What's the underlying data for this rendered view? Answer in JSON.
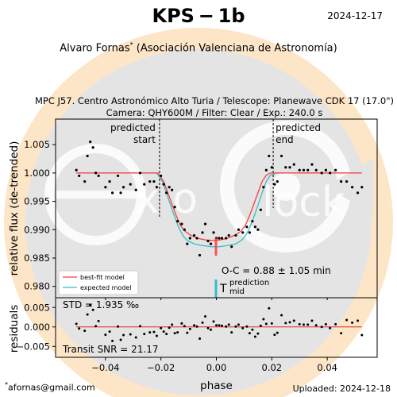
{
  "header": {
    "title": "KPS − 1b",
    "date": "2024-12-17",
    "author_prefix": "Alvaro Fornas",
    "author_mark": "*",
    "author_suffix": " (Asociación Valenciana de Astronomía)",
    "observation_line1": "MPC J57. Centro Astronómico Alto Turia / Telescope: Planewave CDK 17 (17.0\")",
    "observation_line2": "Camera: QHY600M / Filter: Clear / Exp.: 240.0 s"
  },
  "footer": {
    "email_mark": "*",
    "email": "afornas@gmail.com",
    "uploaded": "Uploaded: 2024-12-18"
  },
  "colors": {
    "bestfit": "#ff3b3b",
    "expected": "#2ebfc8",
    "residual_line": "#dd2222",
    "bg_cream": "#fde6c8",
    "bg_gray": "#e2e2e2"
  },
  "chart_data": [
    {
      "type": "scatter",
      "panel": "main",
      "ylabel": "relative flux (de-trended)",
      "xlim": [
        -0.058,
        0.058
      ],
      "ylim": [
        0.978,
        1.0095
      ],
      "yticks": [
        "0.980",
        "0.985",
        "0.990",
        "0.995",
        "1.000",
        "1.005"
      ],
      "ytick_values": [
        0.98,
        0.985,
        0.99,
        0.995,
        1.0,
        1.005
      ],
      "predicted_start": {
        "x": -0.0205,
        "label_line1": "predicted",
        "label_line2": "start"
      },
      "predicted_end": {
        "x": 0.0205,
        "label_line1": "predicted",
        "label_line2": "end"
      },
      "series": [
        {
          "name": "best-fit model",
          "kind": "model",
          "x": [
            -0.0505,
            -0.021,
            -0.019,
            -0.0175,
            -0.016,
            -0.0145,
            -0.013,
            -0.0115,
            -0.0095,
            -0.007,
            -0.004,
            -0.001,
            0.0015,
            0.004,
            0.007,
            0.009,
            0.0105,
            0.012,
            0.0135,
            0.015,
            0.0165,
            0.018,
            0.0195,
            0.021,
            0.0525
          ],
          "y": [
            1.0,
            1.0,
            0.9985,
            0.9965,
            0.9945,
            0.9925,
            0.9908,
            0.9898,
            0.9891,
            0.9885,
            0.9882,
            0.9881,
            0.9882,
            0.9885,
            0.9891,
            0.9898,
            0.9908,
            0.9925,
            0.9945,
            0.9965,
            0.9985,
            0.9996,
            1.0,
            1.0,
            1.0
          ]
        },
        {
          "name": "expected model",
          "kind": "model",
          "x": [
            -0.0505,
            -0.0215,
            -0.0195,
            -0.018,
            -0.0165,
            -0.015,
            -0.0135,
            -0.012,
            -0.0105,
            -0.008,
            -0.005,
            -0.002,
            0.001,
            0.004,
            0.007,
            0.009,
            0.0105,
            0.012,
            0.0135,
            0.015,
            0.0165,
            0.018,
            0.0195,
            0.0215,
            0.0525
          ],
          "y": [
            1.0,
            1.0,
            0.9985,
            0.9965,
            0.9943,
            0.9922,
            0.9903,
            0.9889,
            0.9881,
            0.9875,
            0.9872,
            0.987,
            0.987,
            0.9872,
            0.9875,
            0.9881,
            0.9889,
            0.9903,
            0.9922,
            0.9943,
            0.9965,
            0.9985,
            0.9996,
            1.0,
            1.0
          ]
        },
        {
          "name": "data",
          "kind": "points",
          "x": [
            -0.0505,
            -0.0495,
            -0.0475,
            -0.0465,
            -0.0455,
            -0.0445,
            -0.0435,
            -0.0425,
            -0.04,
            -0.0385,
            -0.0375,
            -0.0355,
            -0.0345,
            -0.0335,
            -0.031,
            -0.029,
            -0.0275,
            -0.026,
            -0.024,
            -0.0225,
            -0.0215,
            -0.02,
            -0.019,
            -0.018,
            -0.017,
            -0.016,
            -0.015,
            -0.014,
            -0.0125,
            -0.0115,
            -0.0105,
            -0.0095,
            -0.008,
            -0.007,
            -0.006,
            -0.005,
            -0.004,
            -0.003,
            -0.002,
            -0.001,
            0.0,
            0.001,
            0.002,
            0.0035,
            0.0045,
            0.0055,
            0.007,
            0.008,
            0.0095,
            0.011,
            0.012,
            0.013,
            0.014,
            0.015,
            0.016,
            0.017,
            0.018,
            0.019,
            0.02,
            0.021,
            0.022,
            0.0235,
            0.025,
            0.0265,
            0.028,
            0.03,
            0.0315,
            0.033,
            0.0345,
            0.036,
            0.038,
            0.0395,
            0.041,
            0.043,
            0.045,
            0.047,
            0.049,
            0.051,
            0.0525
          ],
          "y": [
            1.0005,
            0.9995,
            0.9985,
            1.003,
            1.0055,
            1.0045,
            1.0,
            0.9995,
            0.9975,
            0.9985,
            0.9965,
            0.9995,
            0.9965,
            0.9975,
            0.998,
            0.997,
            1.0,
            0.998,
            0.9985,
            0.9985,
            0.9975,
            0.9995,
            0.998,
            0.9965,
            0.9975,
            0.997,
            0.994,
            0.9915,
            0.991,
            0.99,
            0.9875,
            0.9885,
            0.989,
            0.9885,
            0.9855,
            0.9895,
            0.991,
            0.988,
            0.9875,
            0.9895,
            0.9885,
            0.9885,
            0.9885,
            0.9885,
            0.989,
            0.987,
            0.989,
            0.99,
            0.9895,
            0.9905,
            0.9895,
            0.9915,
            0.9905,
            0.99,
            0.9935,
            0.9975,
            1.0005,
            1.003,
            1.001,
            0.998,
            0.9985,
            1.003,
            1.001,
            1.001,
            1.0015,
            1.0005,
            1.0005,
            1.0005,
            1.0015,
            1.0005,
            1.0,
            1.0005,
            1.0,
            1.0005,
            0.9985,
            0.9985,
            0.9975,
            0.9965,
            0.9975
          ]
        }
      ],
      "legend": {
        "position": "lower-left",
        "entries": [
          "best-fit model",
          "expected model"
        ]
      },
      "annotations": {
        "oc_text": "O-C = 0.88 ± 1.05 min",
        "tmid_main": "T",
        "tmid_sup": "prediction",
        "tmid_sub": "mid"
      }
    },
    {
      "type": "scatter",
      "panel": "residuals",
      "ylabel": "residuals",
      "xlabel": "phase",
      "xlim": [
        -0.058,
        0.058
      ],
      "ylim": [
        -0.0078,
        0.0075
      ],
      "xticks": [
        "−0.04",
        "−0.02",
        "0.00",
        "0.02",
        "0.04"
      ],
      "xtick_values": [
        -0.04,
        -0.02,
        0.0,
        0.02,
        0.04
      ],
      "yticks": [
        "0.005",
        "0.000",
        "−0.005"
      ],
      "ytick_values": [
        0.005,
        0.0,
        -0.005
      ],
      "std_text": "STD = 1.935 ‰",
      "snr_text": "Transit SNR = 21.17",
      "series": [
        {
          "name": "residuals",
          "kind": "points",
          "x": [
            -0.0505,
            -0.0495,
            -0.0475,
            -0.0465,
            -0.0455,
            -0.0445,
            -0.0435,
            -0.0425,
            -0.04,
            -0.0385,
            -0.0375,
            -0.0355,
            -0.0345,
            -0.0335,
            -0.031,
            -0.029,
            -0.0275,
            -0.026,
            -0.024,
            -0.0225,
            -0.0215,
            -0.02,
            -0.019,
            -0.018,
            -0.017,
            -0.016,
            -0.015,
            -0.014,
            -0.0125,
            -0.0115,
            -0.0105,
            -0.0095,
            -0.008,
            -0.007,
            -0.006,
            -0.005,
            -0.004,
            -0.003,
            -0.002,
            -0.001,
            0.0,
            0.001,
            0.002,
            0.0035,
            0.0045,
            0.0055,
            0.007,
            0.008,
            0.0095,
            0.011,
            0.012,
            0.013,
            0.014,
            0.015,
            0.016,
            0.017,
            0.018,
            0.019,
            0.02,
            0.021,
            0.022,
            0.0235,
            0.025,
            0.0265,
            0.028,
            0.03,
            0.0315,
            0.033,
            0.0345,
            0.036,
            0.038,
            0.0395,
            0.041,
            0.043,
            0.045,
            0.047,
            0.049,
            0.051,
            0.0525
          ],
          "y": [
            0.0008,
            -0.0004,
            -0.001,
            0.0032,
            0.0056,
            0.0044,
            0.0002,
            0.0015,
            -0.002,
            -0.0012,
            -0.0036,
            0.0001,
            -0.0033,
            -0.0021,
            -0.0019,
            -0.0027,
            0.0002,
            -0.0018,
            -0.0014,
            -0.0013,
            -0.0023,
            -0.0003,
            -0.0012,
            -0.0018,
            -0.0002,
            0.0006,
            -0.0016,
            -0.0014,
            0.0009,
            0.0002,
            -0.0015,
            -0.0005,
            0.0004,
            0.0001,
            -0.003,
            0.0011,
            0.0027,
            -0.0003,
            -0.0007,
            0.0014,
            0.0004,
            0.0004,
            0.0003,
            0.0001,
            0.0006,
            -0.0014,
            0.0001,
            0.0006,
            -0.0003,
            0.0001,
            -0.0016,
            -0.0007,
            -0.0025,
            -0.0017,
            0.0003,
            0.002,
            0.0008,
            0.0048,
            0.0009,
            -0.002,
            -0.0015,
            0.003,
            0.001,
            0.0012,
            0.0016,
            0.0007,
            0.0006,
            0.0006,
            0.0016,
            0.0004,
            0.0,
            0.0007,
            -0.0003,
            0.0007,
            -0.0016,
            0.0018,
            0.0011,
            0.0016,
            -0.0021
          ]
        }
      ]
    }
  ]
}
